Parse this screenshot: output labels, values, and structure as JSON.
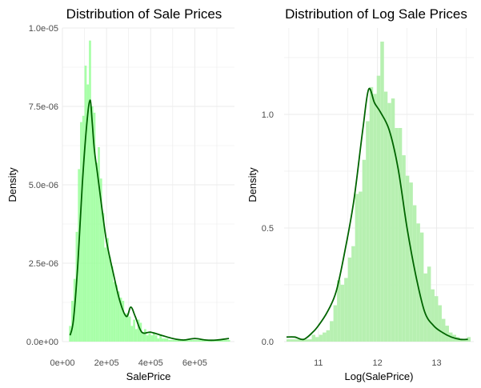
{
  "colors": {
    "hist_left": "#99ff99",
    "hist_right": "#b7f0b1",
    "density_line": "#006400",
    "grid": "#ebebeb",
    "tick_text": "#4d4d4d"
  },
  "chart_data": [
    {
      "type": "histogram+density",
      "title": "Distribution of Sale Prices",
      "xlabel": "SalePrice",
      "ylabel": "Density",
      "xlim": [
        0,
        780000
      ],
      "ylim": [
        0,
        1e-05
      ],
      "x_ticks": [
        0,
        200000,
        400000,
        600000
      ],
      "x_tick_labels": [
        "0e+00",
        "2e+05",
        "4e+05",
        "6e+05"
      ],
      "y_ticks": [
        0,
        2.5e-06,
        5e-06,
        7.5e-06,
        1e-05
      ],
      "y_tick_labels": [
        "0.0e+00",
        "2.5e-06",
        "5.0e-06",
        "7.5e-06",
        "1.0e-05"
      ],
      "grid": true,
      "histogram": {
        "bin_start": 30000,
        "bin_width": 10000,
        "values": [
          5e-07,
          1.3e-06,
          2e-06,
          3.5e-06,
          5.5e-06,
          7e-06,
          7.2e-06,
          8.8e-06,
          8.2e-06,
          9.6e-06,
          7.5e-06,
          7.3e-06,
          5.7e-06,
          6.2e-06,
          5.2e-06,
          4.1e-06,
          3e-06,
          3.3e-06,
          2.7e-06,
          2.4e-06,
          1.9e-06,
          1.8e-06,
          1.6e-06,
          1.4e-06,
          1.3e-06,
          9e-07,
          9e-07,
          8e-07,
          5e-07,
          7e-07,
          4e-07,
          7e-07,
          6e-07,
          3e-07,
          4e-07,
          2e-07,
          3e-07,
          2e-07,
          3e-07,
          2e-07,
          1e-07,
          2e-07,
          1e-07,
          1e-07,
          1e-07,
          5e-08,
          5e-08,
          5e-08,
          5e-08,
          5e-08,
          5e-08,
          5e-08,
          5e-08,
          5e-08,
          5e-08,
          5e-08,
          5e-08,
          5e-08,
          5e-08,
          5e-08,
          5e-08,
          5e-08,
          5e-08,
          5e-08,
          5e-08,
          5e-08,
          5e-08,
          5e-08,
          5e-08,
          5e-08,
          5e-08,
          5e-08,
          5e-08
        ]
      },
      "density": {
        "x": [
          35000,
          50000,
          70000,
          90000,
          110000,
          125000,
          135000,
          145000,
          160000,
          180000,
          200000,
          230000,
          260000,
          290000,
          310000,
          330000,
          360000,
          400000,
          450000,
          500000,
          550000,
          600000,
          650000,
          700000,
          755000
        ],
        "y": [
          2e-07,
          7e-07,
          2.5e-06,
          5e-06,
          6.9e-06,
          7.7e-06,
          7e-06,
          6.1e-06,
          5.3e-06,
          4.2e-06,
          3.2e-06,
          2.2e-06,
          1.3e-06,
          8e-07,
          1.1e-06,
          8e-07,
          3e-07,
          3e-07,
          2e-07,
          1e-07,
          5e-08,
          1e-07,
          5e-08,
          5e-08,
          1e-07
        ]
      }
    },
    {
      "type": "histogram+density",
      "title": "Distribution of Log Sale Prices",
      "xlabel": "Log(SalePrice)",
      "ylabel": "Density",
      "xlim": [
        10.42,
        13.63
      ],
      "ylim": [
        0,
        1.38
      ],
      "x_ticks": [
        11,
        12,
        13
      ],
      "x_tick_labels": [
        "11",
        "12",
        "13"
      ],
      "y_ticks": [
        0,
        0.5,
        1.0
      ],
      "y_tick_labels": [
        "0.0",
        "0.5",
        "1.0"
      ],
      "grid": true,
      "histogram": {
        "bin_start": 10.46,
        "bin_width": 0.0611,
        "values": [
          0.01,
          0.01,
          0.01,
          0.01,
          0.01,
          0.01,
          0.01,
          0.03,
          0.02,
          0.03,
          0.04,
          0.05,
          0.09,
          0.16,
          0.27,
          0.25,
          0.28,
          0.37,
          0.42,
          0.65,
          0.66,
          0.8,
          0.97,
          1.12,
          1.09,
          1.17,
          1.32,
          1.1,
          1.05,
          1.07,
          0.94,
          0.94,
          0.82,
          0.73,
          0.7,
          0.6,
          0.52,
          0.48,
          0.3,
          0.33,
          0.23,
          0.2,
          0.16,
          0.1,
          0.07,
          0.04,
          0.03,
          0.02,
          0.01,
          0.01,
          0.02
        ]
      },
      "density": {
        "x": [
          10.46,
          10.6,
          10.75,
          10.9,
          11.0,
          11.15,
          11.3,
          11.45,
          11.6,
          11.75,
          11.85,
          11.95,
          12.05,
          12.2,
          12.35,
          12.5,
          12.65,
          12.8,
          12.95,
          13.1,
          13.25,
          13.4,
          13.53
        ],
        "y": [
          0.02,
          0.02,
          0.01,
          0.04,
          0.07,
          0.13,
          0.22,
          0.4,
          0.62,
          0.93,
          1.11,
          1.05,
          1.01,
          0.93,
          0.76,
          0.5,
          0.29,
          0.13,
          0.07,
          0.04,
          0.02,
          0.01,
          0.01
        ]
      }
    }
  ]
}
